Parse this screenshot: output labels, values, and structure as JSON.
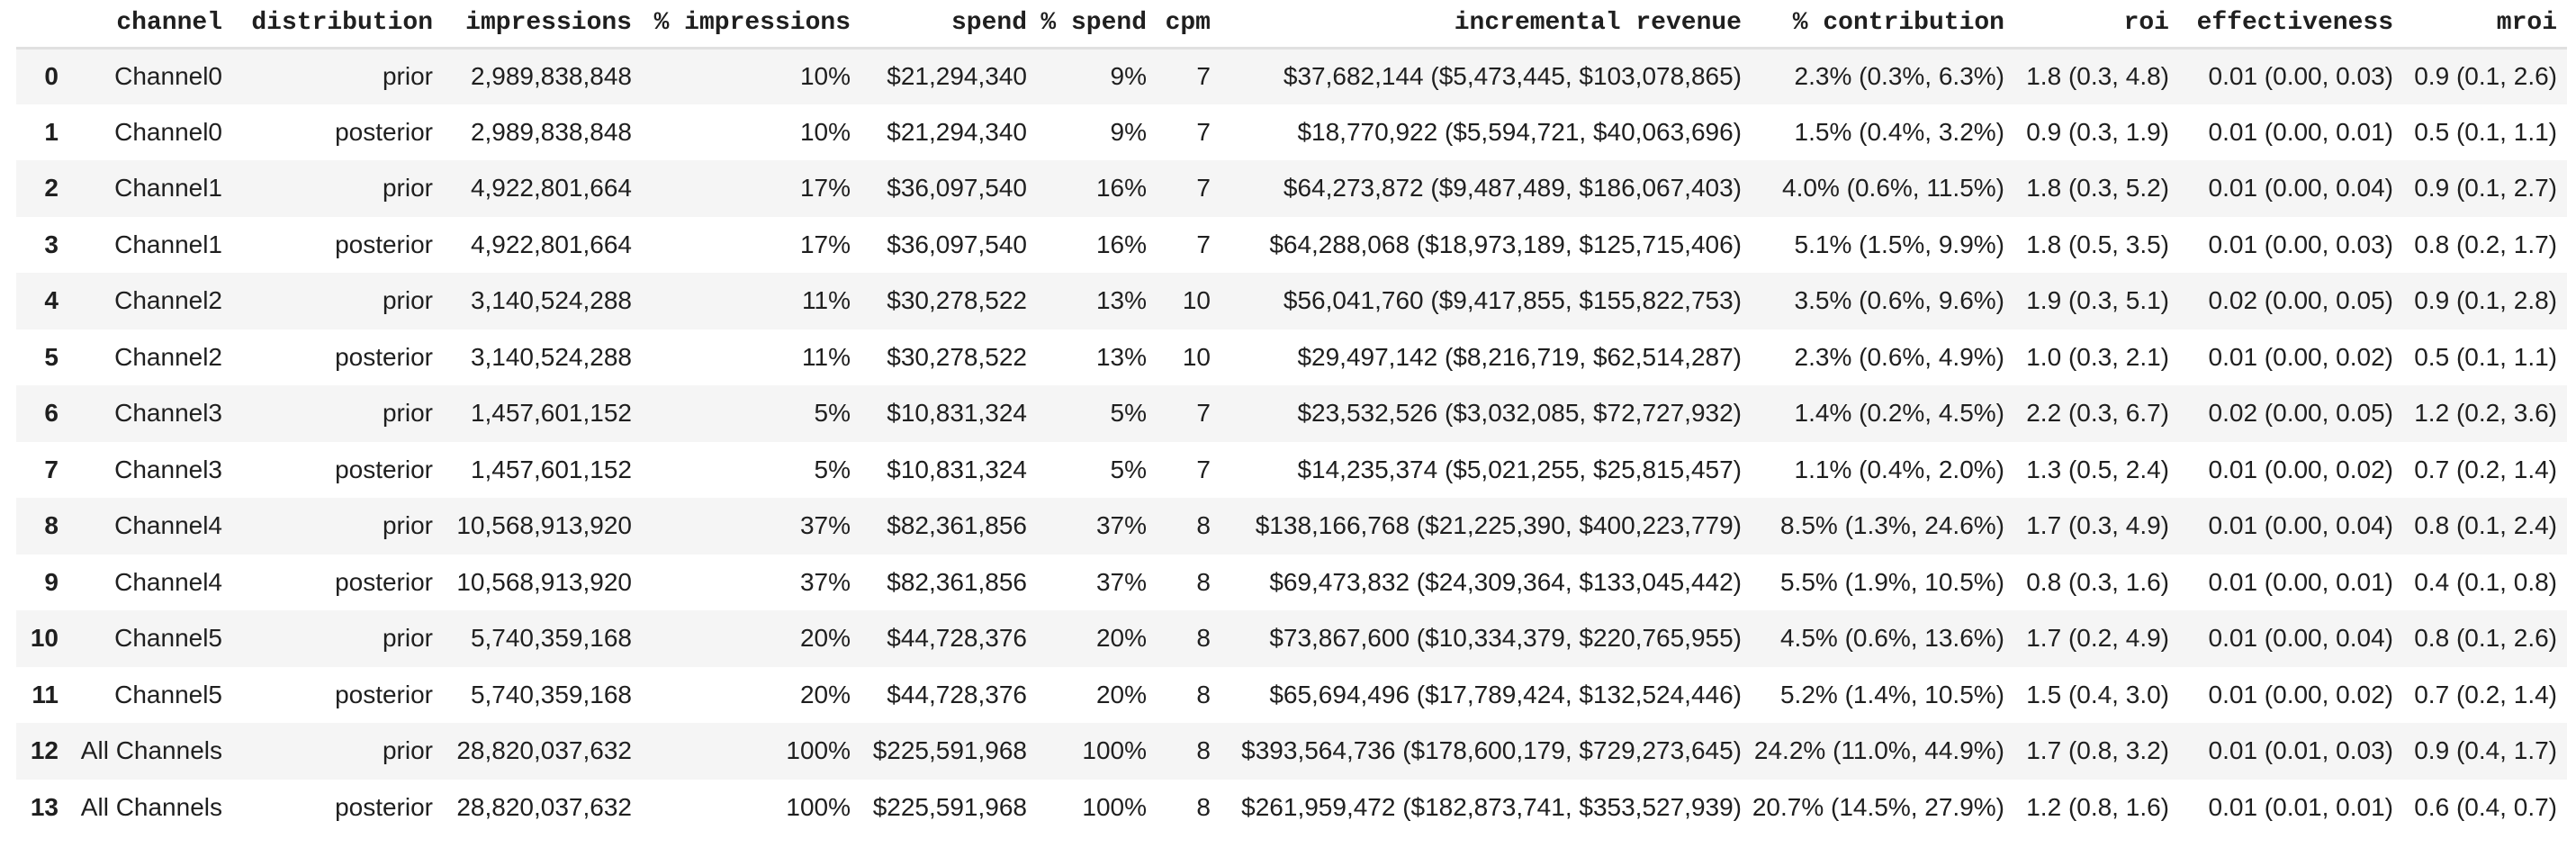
{
  "colors": {
    "row_stripe": "#f5f5f5",
    "header_divider": "#e0e0e0",
    "text": "#1f1f1f"
  },
  "table": {
    "columns": [
      "",
      "channel",
      "distribution",
      "impressions",
      "% impressions",
      "spend",
      "% spend",
      "cpm",
      "incremental revenue",
      "% contribution",
      "roi",
      "effectiveness",
      "mroi"
    ],
    "column_keys": [
      "index",
      "channel",
      "distribution",
      "impressions",
      "pct-impressions",
      "spend",
      "pct-spend",
      "cpm",
      "incremental-revenue",
      "pct-contribution",
      "roi",
      "effectiveness",
      "mroi"
    ],
    "rows": [
      [
        "0",
        "Channel0",
        "prior",
        "2,989,838,848",
        "10%",
        "$21,294,340",
        "9%",
        "7",
        "$37,682,144 ($5,473,445, $103,078,865)",
        "2.3% (0.3%, 6.3%)",
        "1.8 (0.3, 4.8)",
        "0.01 (0.00, 0.03)",
        "0.9 (0.1, 2.6)"
      ],
      [
        "1",
        "Channel0",
        "posterior",
        "2,989,838,848",
        "10%",
        "$21,294,340",
        "9%",
        "7",
        "$18,770,922 ($5,594,721, $40,063,696)",
        "1.5% (0.4%, 3.2%)",
        "0.9 (0.3, 1.9)",
        "0.01 (0.00, 0.01)",
        "0.5 (0.1, 1.1)"
      ],
      [
        "2",
        "Channel1",
        "prior",
        "4,922,801,664",
        "17%",
        "$36,097,540",
        "16%",
        "7",
        "$64,273,872 ($9,487,489, $186,067,403)",
        "4.0% (0.6%, 11.5%)",
        "1.8 (0.3, 5.2)",
        "0.01 (0.00, 0.04)",
        "0.9 (0.1, 2.7)"
      ],
      [
        "3",
        "Channel1",
        "posterior",
        "4,922,801,664",
        "17%",
        "$36,097,540",
        "16%",
        "7",
        "$64,288,068 ($18,973,189, $125,715,406)",
        "5.1% (1.5%, 9.9%)",
        "1.8 (0.5, 3.5)",
        "0.01 (0.00, 0.03)",
        "0.8 (0.2, 1.7)"
      ],
      [
        "4",
        "Channel2",
        "prior",
        "3,140,524,288",
        "11%",
        "$30,278,522",
        "13%",
        "10",
        "$56,041,760 ($9,417,855, $155,822,753)",
        "3.5% (0.6%, 9.6%)",
        "1.9 (0.3, 5.1)",
        "0.02 (0.00, 0.05)",
        "0.9 (0.1, 2.8)"
      ],
      [
        "5",
        "Channel2",
        "posterior",
        "3,140,524,288",
        "11%",
        "$30,278,522",
        "13%",
        "10",
        "$29,497,142 ($8,216,719, $62,514,287)",
        "2.3% (0.6%, 4.9%)",
        "1.0 (0.3, 2.1)",
        "0.01 (0.00, 0.02)",
        "0.5 (0.1, 1.1)"
      ],
      [
        "6",
        "Channel3",
        "prior",
        "1,457,601,152",
        "5%",
        "$10,831,324",
        "5%",
        "7",
        "$23,532,526 ($3,032,085, $72,727,932)",
        "1.4% (0.2%, 4.5%)",
        "2.2 (0.3, 6.7)",
        "0.02 (0.00, 0.05)",
        "1.2 (0.2, 3.6)"
      ],
      [
        "7",
        "Channel3",
        "posterior",
        "1,457,601,152",
        "5%",
        "$10,831,324",
        "5%",
        "7",
        "$14,235,374 ($5,021,255, $25,815,457)",
        "1.1% (0.4%, 2.0%)",
        "1.3 (0.5, 2.4)",
        "0.01 (0.00, 0.02)",
        "0.7 (0.2, 1.4)"
      ],
      [
        "8",
        "Channel4",
        "prior",
        "10,568,913,920",
        "37%",
        "$82,361,856",
        "37%",
        "8",
        "$138,166,768 ($21,225,390, $400,223,779)",
        "8.5% (1.3%, 24.6%)",
        "1.7 (0.3, 4.9)",
        "0.01 (0.00, 0.04)",
        "0.8 (0.1, 2.4)"
      ],
      [
        "9",
        "Channel4",
        "posterior",
        "10,568,913,920",
        "37%",
        "$82,361,856",
        "37%",
        "8",
        "$69,473,832 ($24,309,364, $133,045,442)",
        "5.5% (1.9%, 10.5%)",
        "0.8 (0.3, 1.6)",
        "0.01 (0.00, 0.01)",
        "0.4 (0.1, 0.8)"
      ],
      [
        "10",
        "Channel5",
        "prior",
        "5,740,359,168",
        "20%",
        "$44,728,376",
        "20%",
        "8",
        "$73,867,600 ($10,334,379, $220,765,955)",
        "4.5% (0.6%, 13.6%)",
        "1.7 (0.2, 4.9)",
        "0.01 (0.00, 0.04)",
        "0.8 (0.1, 2.6)"
      ],
      [
        "11",
        "Channel5",
        "posterior",
        "5,740,359,168",
        "20%",
        "$44,728,376",
        "20%",
        "8",
        "$65,694,496 ($17,789,424, $132,524,446)",
        "5.2% (1.4%, 10.5%)",
        "1.5 (0.4, 3.0)",
        "0.01 (0.00, 0.02)",
        "0.7 (0.2, 1.4)"
      ],
      [
        "12",
        "All Channels",
        "prior",
        "28,820,037,632",
        "100%",
        "$225,591,968",
        "100%",
        "8",
        "$393,564,736 ($178,600,179, $729,273,645)",
        "24.2% (11.0%, 44.9%)",
        "1.7 (0.8, 3.2)",
        "0.01 (0.01, 0.03)",
        "0.9 (0.4, 1.7)"
      ],
      [
        "13",
        "All Channels",
        "posterior",
        "28,820,037,632",
        "100%",
        "$225,591,968",
        "100%",
        "8",
        "$261,959,472 ($182,873,741, $353,527,939)",
        "20.7% (14.5%, 27.9%)",
        "1.2 (0.8, 1.6)",
        "0.01 (0.01, 0.01)",
        "0.6 (0.4, 0.7)"
      ]
    ]
  }
}
